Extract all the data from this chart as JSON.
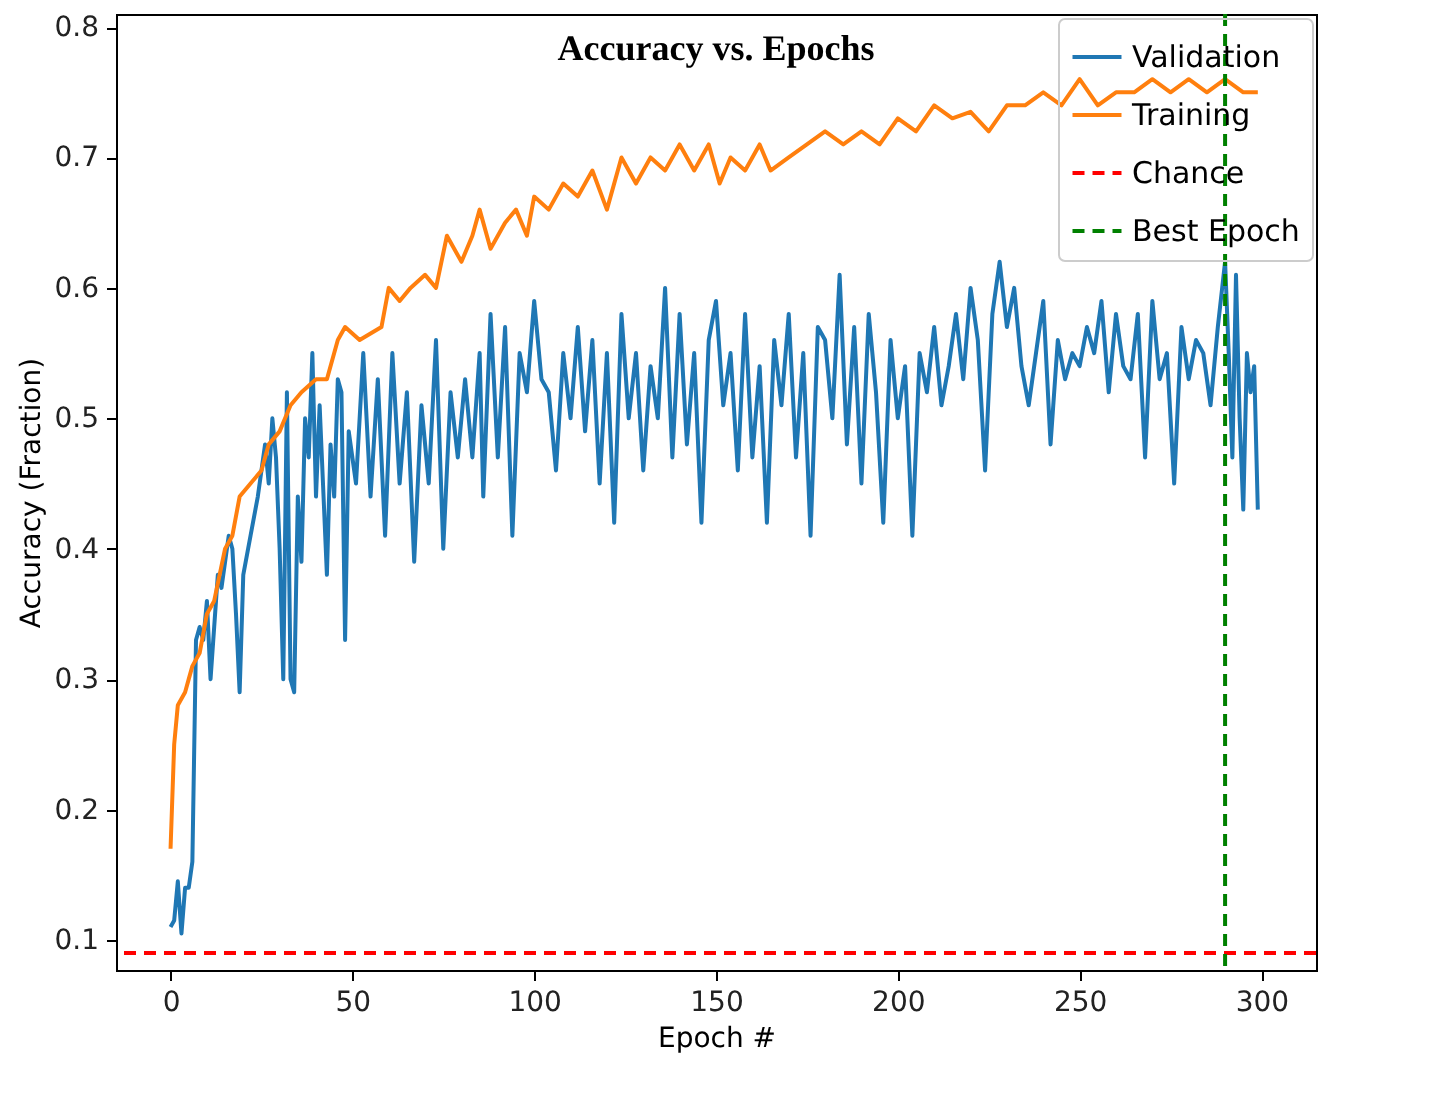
{
  "chart_data": {
    "type": "line",
    "title": "Accuracy vs. Epochs",
    "xlabel": "Epoch #",
    "ylabel": "Accuracy (Fraction)",
    "xlim": [
      -15,
      315
    ],
    "xticks": [
      0,
      50,
      100,
      150,
      200,
      250,
      300
    ],
    "ylim": [
      0.077,
      0.81
    ],
    "yticks": [
      0.1,
      0.2,
      0.3,
      0.4,
      0.5,
      0.6,
      0.7,
      0.8
    ],
    "grid": false,
    "legend": "top right",
    "series": [
      {
        "name": "Validation",
        "color": "#1f77b4",
        "x": [
          0,
          1,
          2,
          3,
          4,
          5,
          6,
          7,
          8,
          9,
          10,
          11,
          12,
          13,
          14,
          16,
          17,
          18,
          19,
          20,
          22,
          24,
          26,
          27,
          28,
          29,
          30,
          31,
          32,
          33,
          34,
          35,
          36,
          37,
          38,
          39,
          40,
          41,
          43,
          44,
          45,
          46,
          47,
          48,
          49,
          51,
          53,
          55,
          57,
          59,
          61,
          63,
          65,
          67,
          69,
          71,
          73,
          75,
          77,
          79,
          81,
          83,
          85,
          86,
          88,
          90,
          92,
          94,
          96,
          98,
          100,
          102,
          104,
          106,
          108,
          110,
          112,
          114,
          116,
          118,
          120,
          122,
          124,
          126,
          128,
          130,
          132,
          134,
          136,
          138,
          140,
          142,
          144,
          146,
          148,
          150,
          152,
          154,
          156,
          158,
          160,
          162,
          164,
          166,
          168,
          170,
          172,
          174,
          176,
          178,
          180,
          182,
          184,
          186,
          188,
          190,
          192,
          194,
          196,
          198,
          200,
          202,
          204,
          206,
          208,
          210,
          212,
          214,
          216,
          218,
          220,
          222,
          224,
          226,
          228,
          230,
          232,
          234,
          236,
          238,
          240,
          242,
          244,
          246,
          248,
          250,
          252,
          254,
          256,
          258,
          260,
          262,
          264,
          266,
          268,
          270,
          272,
          274,
          276,
          278,
          280,
          282,
          284,
          286,
          288,
          290,
          291,
          292,
          293,
          294,
          295,
          296,
          297,
          298,
          299
        ],
        "values": [
          0.11,
          0.115,
          0.145,
          0.105,
          0.14,
          0.14,
          0.16,
          0.33,
          0.34,
          0.33,
          0.36,
          0.3,
          0.34,
          0.38,
          0.37,
          0.41,
          0.4,
          0.35,
          0.29,
          0.38,
          0.41,
          0.44,
          0.48,
          0.45,
          0.5,
          0.47,
          0.4,
          0.3,
          0.52,
          0.3,
          0.29,
          0.44,
          0.39,
          0.5,
          0.47,
          0.55,
          0.44,
          0.51,
          0.38,
          0.48,
          0.44,
          0.53,
          0.52,
          0.33,
          0.49,
          0.45,
          0.55,
          0.44,
          0.53,
          0.41,
          0.55,
          0.45,
          0.52,
          0.39,
          0.51,
          0.45,
          0.56,
          0.4,
          0.52,
          0.47,
          0.53,
          0.47,
          0.55,
          0.44,
          0.58,
          0.47,
          0.57,
          0.41,
          0.55,
          0.52,
          0.59,
          0.53,
          0.52,
          0.46,
          0.55,
          0.5,
          0.57,
          0.49,
          0.56,
          0.45,
          0.55,
          0.42,
          0.58,
          0.5,
          0.55,
          0.46,
          0.54,
          0.5,
          0.6,
          0.47,
          0.58,
          0.48,
          0.55,
          0.42,
          0.56,
          0.59,
          0.51,
          0.55,
          0.46,
          0.58,
          0.47,
          0.54,
          0.42,
          0.56,
          0.51,
          0.58,
          0.47,
          0.55,
          0.41,
          0.57,
          0.56,
          0.5,
          0.61,
          0.48,
          0.57,
          0.45,
          0.58,
          0.52,
          0.42,
          0.56,
          0.5,
          0.54,
          0.41,
          0.55,
          0.52,
          0.57,
          0.51,
          0.54,
          0.58,
          0.53,
          0.6,
          0.56,
          0.46,
          0.58,
          0.62,
          0.57,
          0.6,
          0.54,
          0.51,
          0.55,
          0.59,
          0.48,
          0.56,
          0.53,
          0.55,
          0.54,
          0.57,
          0.55,
          0.59,
          0.52,
          0.58,
          0.54,
          0.53,
          0.58,
          0.47,
          0.59,
          0.53,
          0.55,
          0.45,
          0.57,
          0.53,
          0.56,
          0.55,
          0.51,
          0.57,
          0.62,
          0.55,
          0.47,
          0.61,
          0.5,
          0.43,
          0.55,
          0.52,
          0.54,
          0.43
        ]
      },
      {
        "name": "Training",
        "color": "#ff7f0e",
        "x": [
          0,
          1,
          2,
          3,
          4,
          5,
          6,
          8,
          10,
          12,
          15,
          17,
          19,
          22,
          25,
          27,
          30,
          33,
          36,
          40,
          43,
          46,
          48,
          52,
          55,
          58,
          60,
          63,
          66,
          70,
          73,
          76,
          80,
          83,
          85,
          88,
          92,
          95,
          98,
          100,
          104,
          108,
          112,
          116,
          120,
          124,
          128,
          132,
          136,
          140,
          144,
          148,
          151,
          154,
          158,
          162,
          165,
          170,
          175,
          180,
          185,
          190,
          195,
          200,
          205,
          210,
          215,
          220,
          225,
          230,
          235,
          240,
          245,
          250,
          255,
          260,
          265,
          270,
          275,
          280,
          285,
          290,
          295,
          299
        ],
        "values": [
          0.17,
          0.25,
          0.28,
          0.285,
          0.29,
          0.3,
          0.31,
          0.32,
          0.35,
          0.36,
          0.4,
          0.41,
          0.44,
          0.45,
          0.46,
          0.48,
          0.49,
          0.51,
          0.52,
          0.53,
          0.53,
          0.56,
          0.57,
          0.56,
          0.565,
          0.57,
          0.6,
          0.59,
          0.6,
          0.61,
          0.6,
          0.64,
          0.62,
          0.64,
          0.66,
          0.63,
          0.65,
          0.66,
          0.64,
          0.67,
          0.66,
          0.68,
          0.67,
          0.69,
          0.66,
          0.7,
          0.68,
          0.7,
          0.69,
          0.71,
          0.69,
          0.71,
          0.68,
          0.7,
          0.69,
          0.71,
          0.69,
          0.7,
          0.71,
          0.72,
          0.71,
          0.72,
          0.71,
          0.73,
          0.72,
          0.74,
          0.73,
          0.735,
          0.72,
          0.74,
          0.74,
          0.75,
          0.74,
          0.76,
          0.74,
          0.75,
          0.75,
          0.76,
          0.75,
          0.76,
          0.75,
          0.76,
          0.75,
          0.75
        ]
      }
    ],
    "ref_lines": [
      {
        "axis": "y",
        "value": 0.09,
        "label": "Chance",
        "color": "#ff0000",
        "line_style": "dashed"
      },
      {
        "axis": "x",
        "value": 290,
        "label": "Best Epoch",
        "color": "#008000",
        "line_style": "dashed"
      }
    ]
  }
}
